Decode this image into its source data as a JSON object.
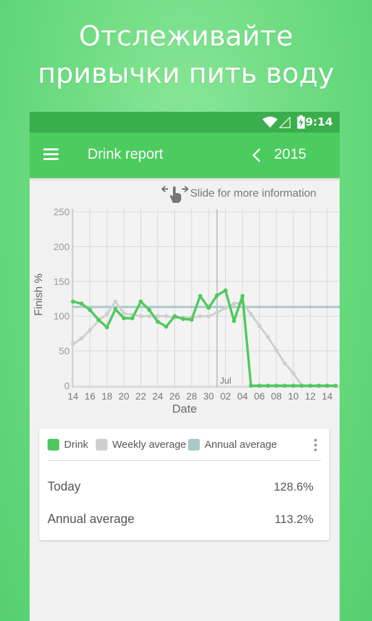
{
  "promo": {
    "line1": "Отслеживайте",
    "line2": "привычки пить воду"
  },
  "status_bar": {
    "time": "9:14",
    "icons": [
      "wifi-icon",
      "signal-icon",
      "battery-charging-icon"
    ]
  },
  "app_bar": {
    "menu_icon": "menu-icon",
    "title": "Drink report",
    "back_icon": "chevron-left-icon",
    "year": "2015"
  },
  "hint": {
    "icon": "swipe-hand-icon",
    "text": "Slide for more information"
  },
  "colors": {
    "brand_green": "#4ccb5e",
    "status_green": "#3aad4d",
    "drink": "#4fc95e",
    "weekly_average": "#cfcfcf",
    "annual_average": "#a8c9c8"
  },
  "chart_data": {
    "type": "line",
    "ylabel": "Finish %",
    "xlabel": "Date",
    "ylim": [
      0,
      250
    ],
    "yticks": [
      "0",
      "50",
      "100",
      "150",
      "200",
      "250"
    ],
    "x_ticks": [
      "14",
      "16",
      "18",
      "20",
      "22",
      "24",
      "26",
      "28",
      "30",
      "02",
      "04",
      "06",
      "08",
      "10",
      "12",
      "14"
    ],
    "month_marker": {
      "label": "Jul",
      "after_day": "01"
    },
    "grid": true,
    "dates": [
      "Jun 14",
      "Jun 15",
      "Jun 16",
      "Jun 17",
      "Jun 18",
      "Jun 19",
      "Jun 20",
      "Jun 21",
      "Jun 22",
      "Jun 23",
      "Jun 24",
      "Jun 25",
      "Jun 26",
      "Jun 27",
      "Jun 28",
      "Jun 29",
      "Jun 30",
      "Jul 01",
      "Jul 02",
      "Jul 03",
      "Jul 04",
      "Jul 05",
      "Jul 06",
      "Jul 07",
      "Jul 08",
      "Jul 09",
      "Jul 10",
      "Jul 11",
      "Jul 12",
      "Jul 13",
      "Jul 14",
      "Jul 15"
    ],
    "series": [
      {
        "name": "Drink",
        "values": [
          121,
          118,
          109,
          95,
          84,
          110,
          97,
          97,
          121,
          109,
          92,
          85,
          100,
          96,
          95,
          129,
          112,
          130,
          137,
          93,
          129,
          0,
          0,
          0,
          0,
          0,
          0,
          0,
          0,
          0,
          0,
          0
        ]
      },
      {
        "name": "Weekly average",
        "values": [
          60,
          68,
          80,
          93,
          103,
          121,
          104,
          102,
          100,
          100,
          100,
          100,
          98,
          98,
          98,
          100,
          100,
          105,
          112,
          118,
          119,
          103,
          86,
          70,
          51,
          32,
          18,
          0,
          0,
          0,
          0,
          0
        ]
      },
      {
        "name": "Annual average",
        "values": [
          113.2,
          113.2,
          113.2,
          113.2,
          113.2,
          113.2,
          113.2,
          113.2,
          113.2,
          113.2,
          113.2,
          113.2,
          113.2,
          113.2,
          113.2,
          113.2,
          113.2,
          113.2,
          113.2,
          113.2,
          113.2,
          113.2,
          113.2,
          113.2,
          113.2,
          113.2,
          113.2,
          113.2,
          113.2,
          113.2,
          113.2,
          113.2
        ]
      }
    ]
  },
  "legend": {
    "items": [
      {
        "label": "Drink",
        "color": "#4fc95e"
      },
      {
        "label": "Weekly average",
        "color": "#cfcfcf"
      },
      {
        "label": "Annual average",
        "color": "#a8c9c8"
      }
    ],
    "more_icon": "more-vertical-icon"
  },
  "stats": [
    {
      "label": "Today",
      "value": "128.6%"
    },
    {
      "label": "Annual average",
      "value": "113.2%"
    }
  ]
}
